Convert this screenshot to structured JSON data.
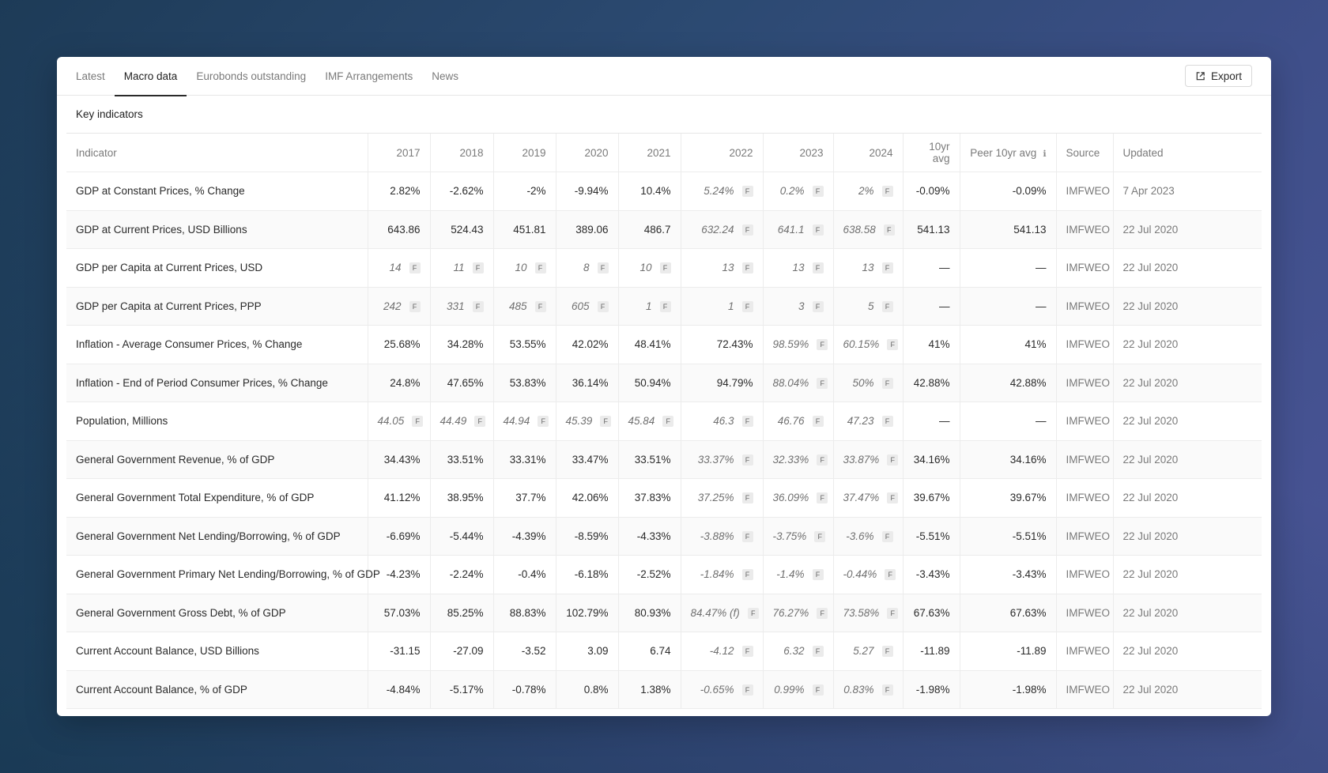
{
  "tabs": [
    {
      "label": "Latest",
      "active": false
    },
    {
      "label": "Macro data",
      "active": true
    },
    {
      "label": "Eurobonds outstanding",
      "active": false
    },
    {
      "label": "IMF Arrangements",
      "active": false
    },
    {
      "label": "News",
      "active": false
    }
  ],
  "export_label": "Export",
  "section_title": "Key indicators",
  "headers": {
    "indicator": "Indicator",
    "years": [
      "2017",
      "2018",
      "2019",
      "2020",
      "2021",
      "2022",
      "2023",
      "2024"
    ],
    "avg": "10yr avg",
    "peer_avg": "Peer 10yr avg",
    "source": "Source",
    "updated": "Updated"
  },
  "forecast_badge": "F",
  "rows": [
    {
      "indicator": "GDP at Constant Prices, % Change",
      "values": [
        {
          "v": "2.82%",
          "f": false
        },
        {
          "v": "-2.62%",
          "f": false
        },
        {
          "v": "-2%",
          "f": false
        },
        {
          "v": "-9.94%",
          "f": false
        },
        {
          "v": "10.4%",
          "f": false
        },
        {
          "v": "5.24%",
          "f": true
        },
        {
          "v": "0.2%",
          "f": true
        },
        {
          "v": "2%",
          "f": true
        }
      ],
      "avg": "-0.09%",
      "peer_avg": "-0.09%",
      "source": "IMFWEO",
      "updated": "7 Apr 2023"
    },
    {
      "indicator": "GDP at Current Prices, USD Billions",
      "values": [
        {
          "v": "643.86",
          "f": false
        },
        {
          "v": "524.43",
          "f": false
        },
        {
          "v": "451.81",
          "f": false
        },
        {
          "v": "389.06",
          "f": false
        },
        {
          "v": "486.7",
          "f": false
        },
        {
          "v": "632.24",
          "f": true
        },
        {
          "v": "641.1",
          "f": true
        },
        {
          "v": "638.58",
          "f": true
        }
      ],
      "avg": "541.13",
      "peer_avg": "541.13",
      "source": "IMFWEO",
      "updated": "22 Jul 2020"
    },
    {
      "indicator": "GDP per Capita at Current Prices, USD",
      "values": [
        {
          "v": "14",
          "f": true
        },
        {
          "v": "11",
          "f": true
        },
        {
          "v": "10",
          "f": true
        },
        {
          "v": "8",
          "f": true
        },
        {
          "v": "10",
          "f": true
        },
        {
          "v": "13",
          "f": true
        },
        {
          "v": "13",
          "f": true
        },
        {
          "v": "13",
          "f": true
        }
      ],
      "avg": "—",
      "peer_avg": "—",
      "source": "IMFWEO",
      "updated": "22 Jul 2020"
    },
    {
      "indicator": "GDP per Capita at Current Prices, PPP",
      "values": [
        {
          "v": "242",
          "f": true
        },
        {
          "v": "331",
          "f": true
        },
        {
          "v": "485",
          "f": true
        },
        {
          "v": "605",
          "f": true
        },
        {
          "v": "1",
          "f": true
        },
        {
          "v": "1",
          "f": true
        },
        {
          "v": "3",
          "f": true
        },
        {
          "v": "5",
          "f": true
        }
      ],
      "avg": "—",
      "peer_avg": "—",
      "source": "IMFWEO",
      "updated": "22 Jul 2020"
    },
    {
      "indicator": "Inflation - Average Consumer Prices, % Change",
      "values": [
        {
          "v": "25.68%",
          "f": false
        },
        {
          "v": "34.28%",
          "f": false
        },
        {
          "v": "53.55%",
          "f": false
        },
        {
          "v": "42.02%",
          "f": false
        },
        {
          "v": "48.41%",
          "f": false
        },
        {
          "v": "72.43%",
          "f": false
        },
        {
          "v": "98.59%",
          "f": true
        },
        {
          "v": "60.15%",
          "f": true
        }
      ],
      "avg": "41%",
      "peer_avg": "41%",
      "source": "IMFWEO",
      "updated": "22 Jul 2020"
    },
    {
      "indicator": "Inflation - End of Period Consumer Prices, % Change",
      "values": [
        {
          "v": "24.8%",
          "f": false
        },
        {
          "v": "47.65%",
          "f": false
        },
        {
          "v": "53.83%",
          "f": false
        },
        {
          "v": "36.14%",
          "f": false
        },
        {
          "v": "50.94%",
          "f": false
        },
        {
          "v": "94.79%",
          "f": false
        },
        {
          "v": "88.04%",
          "f": true
        },
        {
          "v": "50%",
          "f": true
        }
      ],
      "avg": "42.88%",
      "peer_avg": "42.88%",
      "source": "IMFWEO",
      "updated": "22 Jul 2020"
    },
    {
      "indicator": "Population, Millions",
      "values": [
        {
          "v": "44.05",
          "f": true
        },
        {
          "v": "44.49",
          "f": true
        },
        {
          "v": "44.94",
          "f": true
        },
        {
          "v": "45.39",
          "f": true
        },
        {
          "v": "45.84",
          "f": true
        },
        {
          "v": "46.3",
          "f": true
        },
        {
          "v": "46.76",
          "f": true
        },
        {
          "v": "47.23",
          "f": true
        }
      ],
      "avg": "—",
      "peer_avg": "—",
      "source": "IMFWEO",
      "updated": "22 Jul 2020"
    },
    {
      "indicator": "General Government Revenue, % of GDP",
      "values": [
        {
          "v": "34.43%",
          "f": false
        },
        {
          "v": "33.51%",
          "f": false
        },
        {
          "v": "33.31%",
          "f": false
        },
        {
          "v": "33.47%",
          "f": false
        },
        {
          "v": "33.51%",
          "f": false
        },
        {
          "v": "33.37%",
          "f": true
        },
        {
          "v": "32.33%",
          "f": true
        },
        {
          "v": "33.87%",
          "f": true
        }
      ],
      "avg": "34.16%",
      "peer_avg": "34.16%",
      "source": "IMFWEO",
      "updated": "22 Jul 2020"
    },
    {
      "indicator": "General Government Total Expenditure, % of GDP",
      "values": [
        {
          "v": "41.12%",
          "f": false
        },
        {
          "v": "38.95%",
          "f": false
        },
        {
          "v": "37.7%",
          "f": false
        },
        {
          "v": "42.06%",
          "f": false
        },
        {
          "v": "37.83%",
          "f": false
        },
        {
          "v": "37.25%",
          "f": true
        },
        {
          "v": "36.09%",
          "f": true
        },
        {
          "v": "37.47%",
          "f": true
        }
      ],
      "avg": "39.67%",
      "peer_avg": "39.67%",
      "source": "IMFWEO",
      "updated": "22 Jul 2020"
    },
    {
      "indicator": "General Government Net Lending/Borrowing, % of GDP",
      "values": [
        {
          "v": "-6.69%",
          "f": false
        },
        {
          "v": "-5.44%",
          "f": false
        },
        {
          "v": "-4.39%",
          "f": false
        },
        {
          "v": "-8.59%",
          "f": false
        },
        {
          "v": "-4.33%",
          "f": false
        },
        {
          "v": "-3.88%",
          "f": true
        },
        {
          "v": "-3.75%",
          "f": true
        },
        {
          "v": "-3.6%",
          "f": true
        }
      ],
      "avg": "-5.51%",
      "peer_avg": "-5.51%",
      "source": "IMFWEO",
      "updated": "22 Jul 2020"
    },
    {
      "indicator": "General Government Primary Net Lending/Borrowing, % of GDP",
      "values": [
        {
          "v": "-4.23%",
          "f": false
        },
        {
          "v": "-2.24%",
          "f": false
        },
        {
          "v": "-0.4%",
          "f": false
        },
        {
          "v": "-6.18%",
          "f": false
        },
        {
          "v": "-2.52%",
          "f": false
        },
        {
          "v": "-1.84%",
          "f": true
        },
        {
          "v": "-1.4%",
          "f": true
        },
        {
          "v": "-0.44%",
          "f": true
        }
      ],
      "avg": "-3.43%",
      "peer_avg": "-3.43%",
      "source": "IMFWEO",
      "updated": "22 Jul 2020"
    },
    {
      "indicator": "General Government Gross Debt, % of GDP",
      "values": [
        {
          "v": "57.03%",
          "f": false
        },
        {
          "v": "85.25%",
          "f": false
        },
        {
          "v": "88.83%",
          "f": false
        },
        {
          "v": "102.79%",
          "f": false
        },
        {
          "v": "80.93%",
          "f": false
        },
        {
          "v": "84.47% (f)",
          "f": true
        },
        {
          "v": "76.27%",
          "f": true
        },
        {
          "v": "73.58%",
          "f": true
        }
      ],
      "avg": "67.63%",
      "peer_avg": "67.63%",
      "source": "IMFWEO",
      "updated": "22 Jul 2020"
    },
    {
      "indicator": "Current Account Balance, USD Billions",
      "values": [
        {
          "v": "-31.15",
          "f": false
        },
        {
          "v": "-27.09",
          "f": false
        },
        {
          "v": "-3.52",
          "f": false
        },
        {
          "v": "3.09",
          "f": false
        },
        {
          "v": "6.74",
          "f": false
        },
        {
          "v": "-4.12",
          "f": true
        },
        {
          "v": "6.32",
          "f": true
        },
        {
          "v": "5.27",
          "f": true
        }
      ],
      "avg": "-11.89",
      "peer_avg": "-11.89",
      "source": "IMFWEO",
      "updated": "22 Jul 2020"
    },
    {
      "indicator": "Current Account Balance, % of GDP",
      "values": [
        {
          "v": "-4.84%",
          "f": false
        },
        {
          "v": "-5.17%",
          "f": false
        },
        {
          "v": "-0.78%",
          "f": false
        },
        {
          "v": "0.8%",
          "f": false
        },
        {
          "v": "1.38%",
          "f": false
        },
        {
          "v": "-0.65%",
          "f": true
        },
        {
          "v": "0.99%",
          "f": true
        },
        {
          "v": "0.83%",
          "f": true
        }
      ],
      "avg": "-1.98%",
      "peer_avg": "-1.98%",
      "source": "IMFWEO",
      "updated": "22 Jul 2020"
    }
  ]
}
